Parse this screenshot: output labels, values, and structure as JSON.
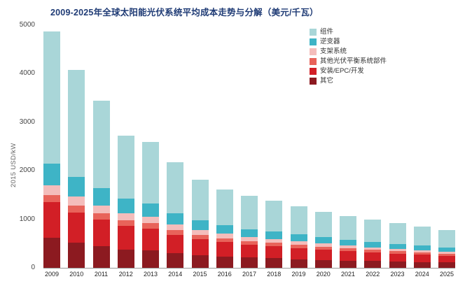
{
  "title": "2009-2025年全球太阳能光伏系统平均成本走势与分解（美元/千瓦）",
  "y_axis": {
    "label": "2015 USD/kW"
  },
  "chart_data": {
    "type": "bar",
    "stacked": true,
    "title": "2009-2025年全球太阳能光伏系统平均成本走势与分解（美元/千瓦）",
    "ylabel": "2015 USD/kW",
    "ylim": [
      0,
      5000
    ],
    "yticks": [
      0,
      1000,
      2000,
      3000,
      4000,
      5000
    ],
    "grid": false,
    "legend_position": "top-right",
    "series_order": "top-of-stack-first",
    "categories": [
      "2009",
      "2010",
      "2011",
      "2012",
      "2013",
      "2014",
      "2015",
      "2016",
      "2017",
      "2018",
      "2019",
      "2020",
      "2021",
      "2022",
      "2023",
      "2024",
      "2025"
    ],
    "series": [
      {
        "key": "module",
        "name": "组件",
        "color": "#a9d6d8",
        "values": [
          2720,
          2210,
          1810,
          1300,
          1270,
          1050,
          830,
          740,
          680,
          635,
          585,
          530,
          490,
          465,
          427,
          390,
          362
        ]
      },
      {
        "key": "inverter",
        "name": "逆变器",
        "color": "#3eb4c6",
        "values": [
          450,
          400,
          350,
          300,
          280,
          240,
          200,
          180,
          165,
          155,
          140,
          130,
          120,
          110,
          100,
          93,
          85
        ]
      },
      {
        "key": "racking",
        "name": "支架系统",
        "color": "#f4bdbb",
        "values": [
          200,
          180,
          160,
          140,
          130,
          110,
          100,
          90,
          80,
          75,
          70,
          65,
          60,
          55,
          50,
          47,
          43
        ]
      },
      {
        "key": "other-bos",
        "name": "其他光伏平衡系统部件",
        "color": "#e8635a",
        "values": [
          150,
          150,
          130,
          120,
          110,
          100,
          90,
          80,
          75,
          70,
          65,
          60,
          55,
          50,
          48,
          45,
          40
        ]
      },
      {
        "key": "install-epc",
        "name": "安装/EPC/开发",
        "color": "#d21f26",
        "values": [
          730,
          620,
          550,
          480,
          450,
          380,
          330,
          300,
          270,
          250,
          230,
          210,
          195,
          180,
          165,
          155,
          140
        ]
      },
      {
        "key": "other",
        "name": "其它",
        "color": "#8c1a20",
        "values": [
          620,
          520,
          450,
          380,
          360,
          300,
          260,
          230,
          210,
          195,
          180,
          165,
          150,
          140,
          130,
          120,
          110
        ]
      }
    ],
    "totals": [
      4870,
      4080,
      3450,
      2720,
      2600,
      2180,
      1810,
      1620,
      1480,
      1380,
      1270,
      1160,
      1070,
      1000,
      920,
      850,
      780
    ]
  }
}
